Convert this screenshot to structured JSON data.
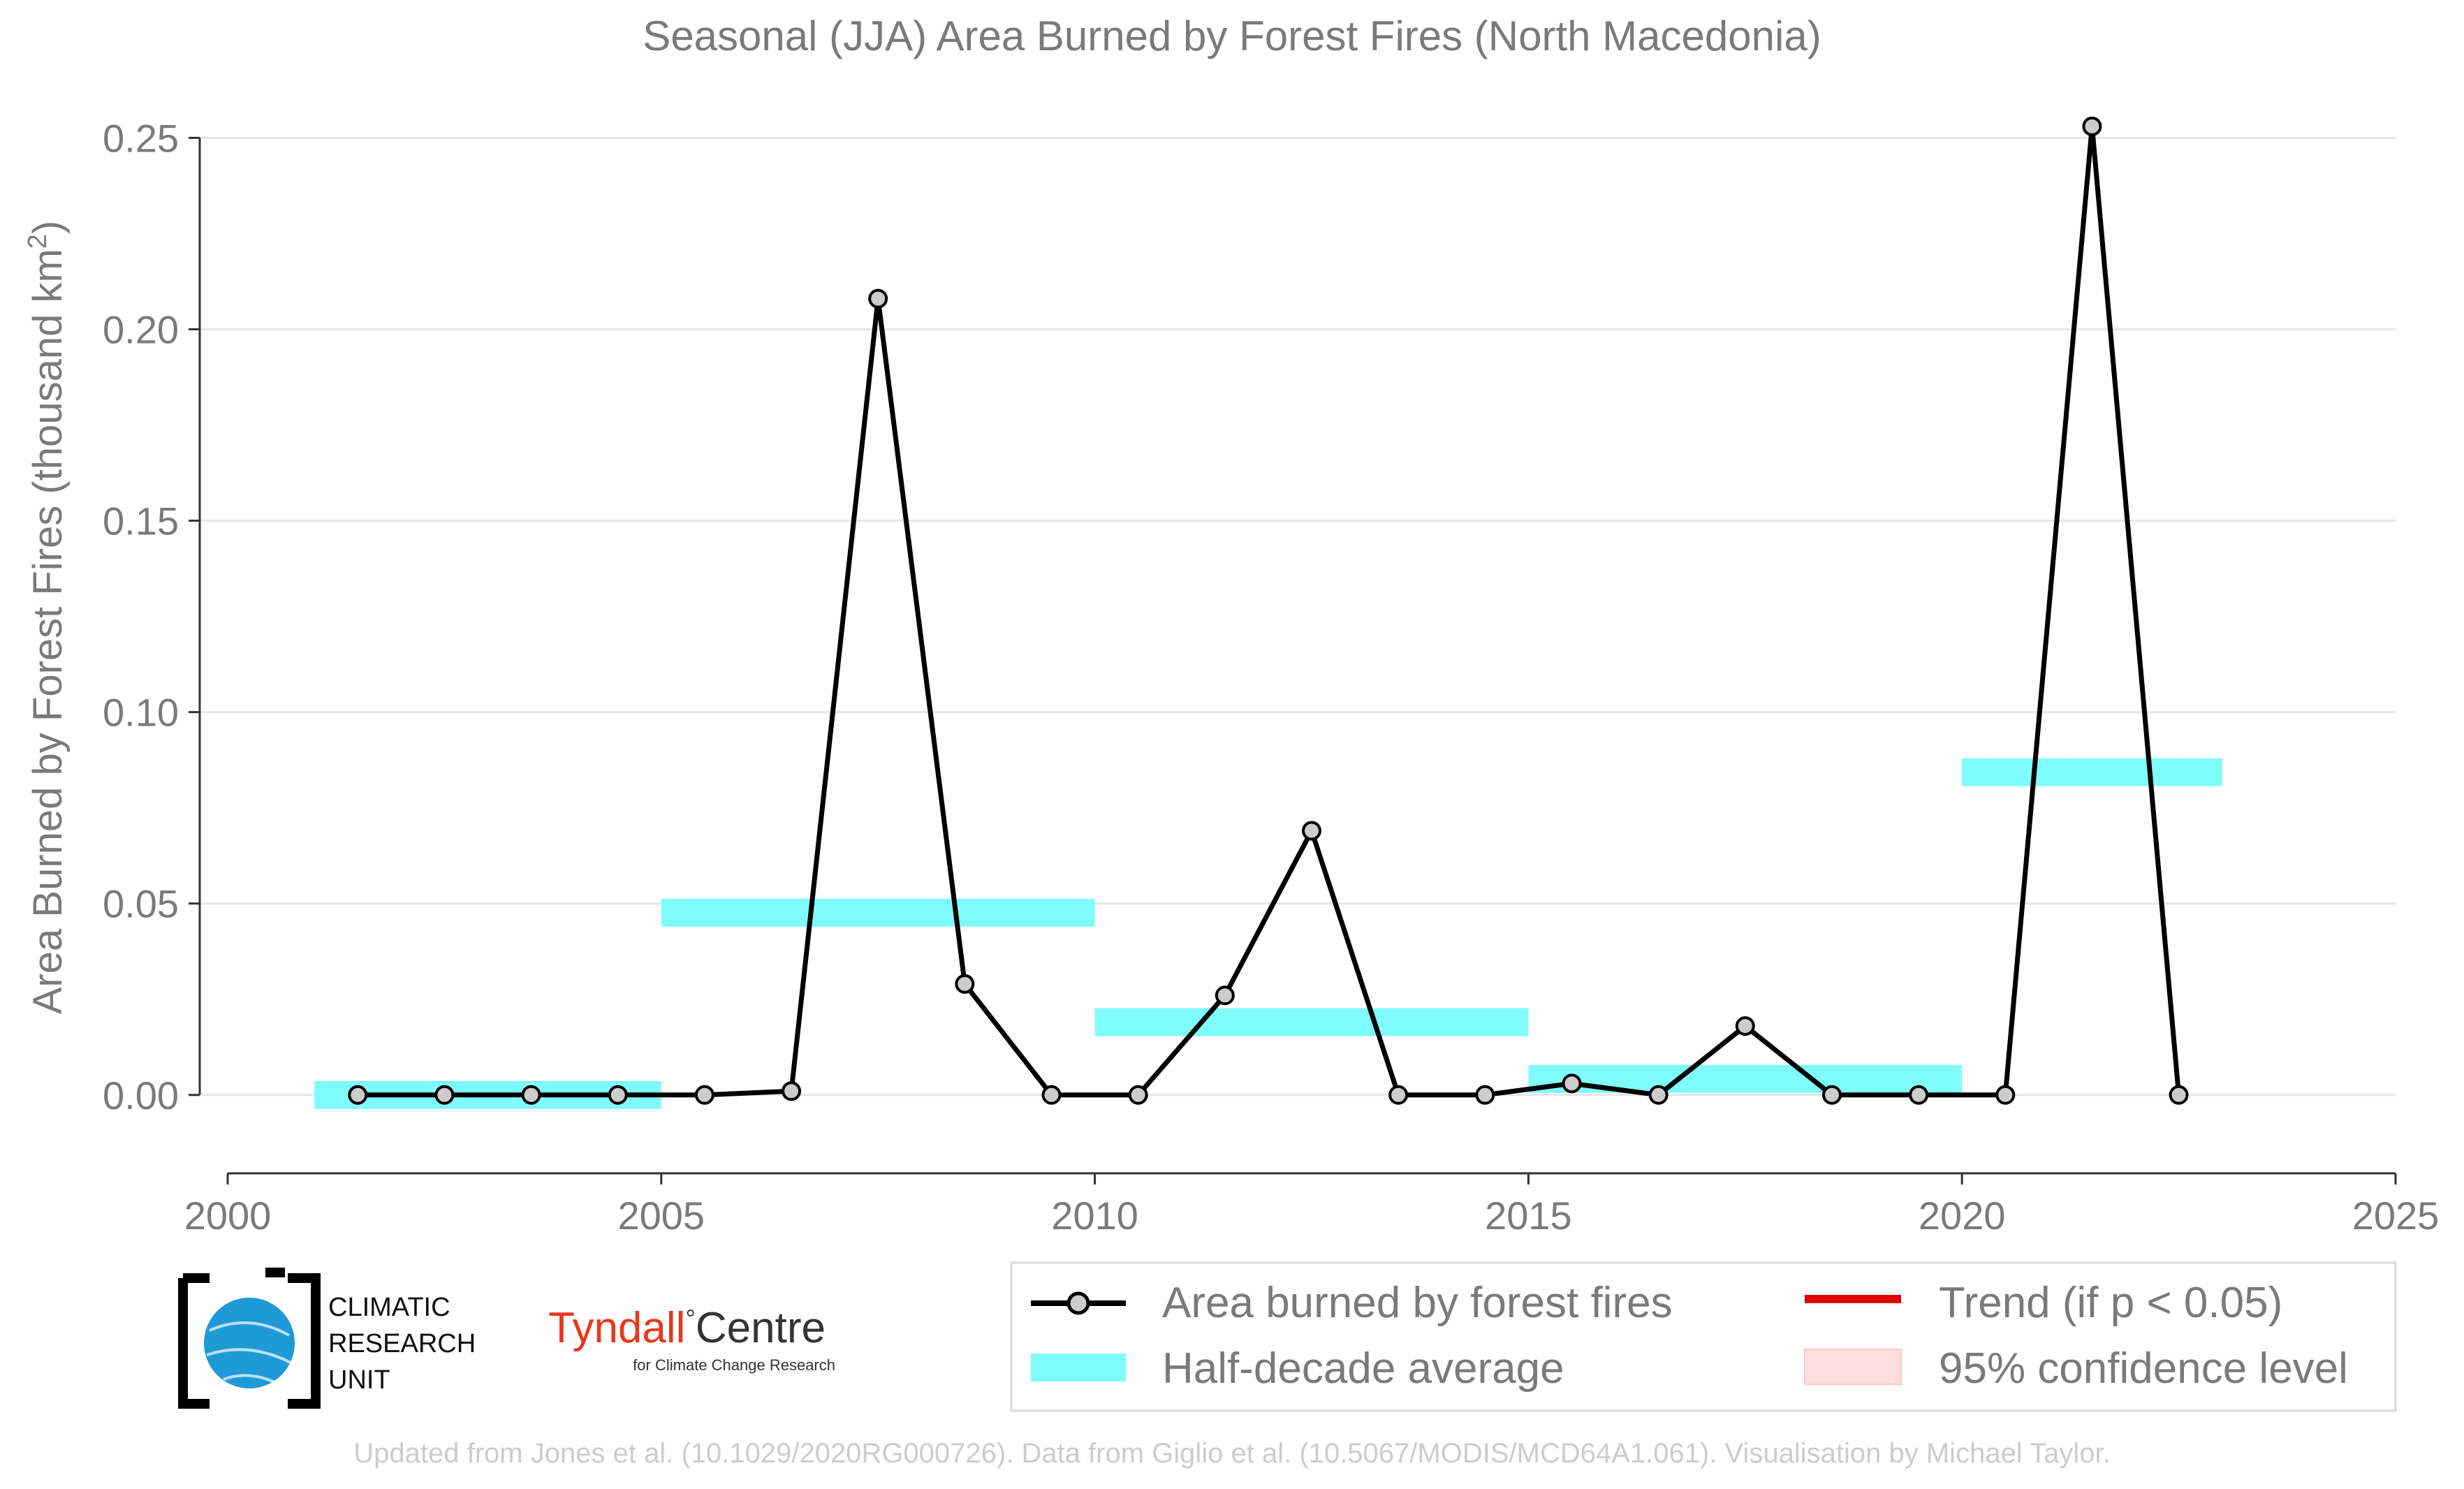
{
  "chart_data": {
    "type": "line",
    "title": "Seasonal (JJA) Area Burned by Forest Fires (North Macedonia)",
    "ylabel": "Area Burned by Forest Fires (thousand km",
    "ylabel_sup": "2",
    "ylabel_close": ")",
    "xlim": [
      2000,
      2025
    ],
    "ylim": [
      -0.015,
      0.255
    ],
    "xticks": [
      2000,
      2005,
      2010,
      2015,
      2020,
      2025
    ],
    "xtick_labels": [
      "2000",
      "2005",
      "2010",
      "2015",
      "2020",
      "2025"
    ],
    "yticks": [
      0.0,
      0.05,
      0.1,
      0.15,
      0.2,
      0.25
    ],
    "ytick_labels": [
      "0.00",
      "0.05",
      "0.10",
      "0.15",
      "0.20",
      "0.25"
    ],
    "grid": "horizontal",
    "legend_position": "bottom",
    "series": [
      {
        "name": "Area burned by forest fires",
        "color": "#000000",
        "marker_fill": "#cccccc",
        "x": [
          2001.5,
          2002.5,
          2003.5,
          2004.5,
          2005.5,
          2006.5,
          2007.5,
          2008.5,
          2009.5,
          2010.5,
          2011.5,
          2012.5,
          2013.5,
          2014.5,
          2015.5,
          2016.5,
          2017.5,
          2018.5,
          2019.5,
          2020.5,
          2021.5,
          2022.5
        ],
        "y": [
          0.0,
          0.0,
          0.0,
          0.0,
          0.0,
          0.001,
          0.208,
          0.029,
          0.0,
          0.0,
          0.026,
          0.069,
          0.0,
          0.0,
          0.003,
          0.0,
          0.018,
          0.0,
          0.0,
          0.0,
          0.253,
          0.0
        ]
      }
    ],
    "half_decade_averages": {
      "name": "Half-decade average",
      "color": "#7ffcfc",
      "segments": [
        {
          "x_start": 2001,
          "x_end": 2005,
          "value": 0.0
        },
        {
          "x_start": 2005,
          "x_end": 2010,
          "value": 0.0476
        },
        {
          "x_start": 2010,
          "x_end": 2015,
          "value": 0.019
        },
        {
          "x_start": 2015,
          "x_end": 2020,
          "value": 0.0042
        },
        {
          "x_start": 2020,
          "x_end": 2023,
          "value": 0.0843
        }
      ]
    },
    "legend": {
      "series_label": "Area burned by forest fires",
      "average_label": "Half-decade average",
      "trend_label": "Trend (if p < 0.05)",
      "trend_color": "#e00000",
      "confidence_label": "95% confidence level",
      "confidence_color": "#ffdede"
    }
  },
  "logos": {
    "cru_line1": "CLIMATIC",
    "cru_line2": "RESEARCH",
    "cru_line3": "UNIT",
    "tyndall_name": "Tyndall",
    "tyndall_degree": "°",
    "tyndall_centre": "Centre",
    "tyndall_sub": "for Climate Change Research",
    "tyndall_color": "#e8381b",
    "globe_color": "#1e9bd7"
  },
  "footer": "Updated from Jones et al. (10.1029/2020RG000726). Data from Giglio et al. (10.5067/MODIS/MCD64A1.061). Visualisation by Michael Taylor."
}
